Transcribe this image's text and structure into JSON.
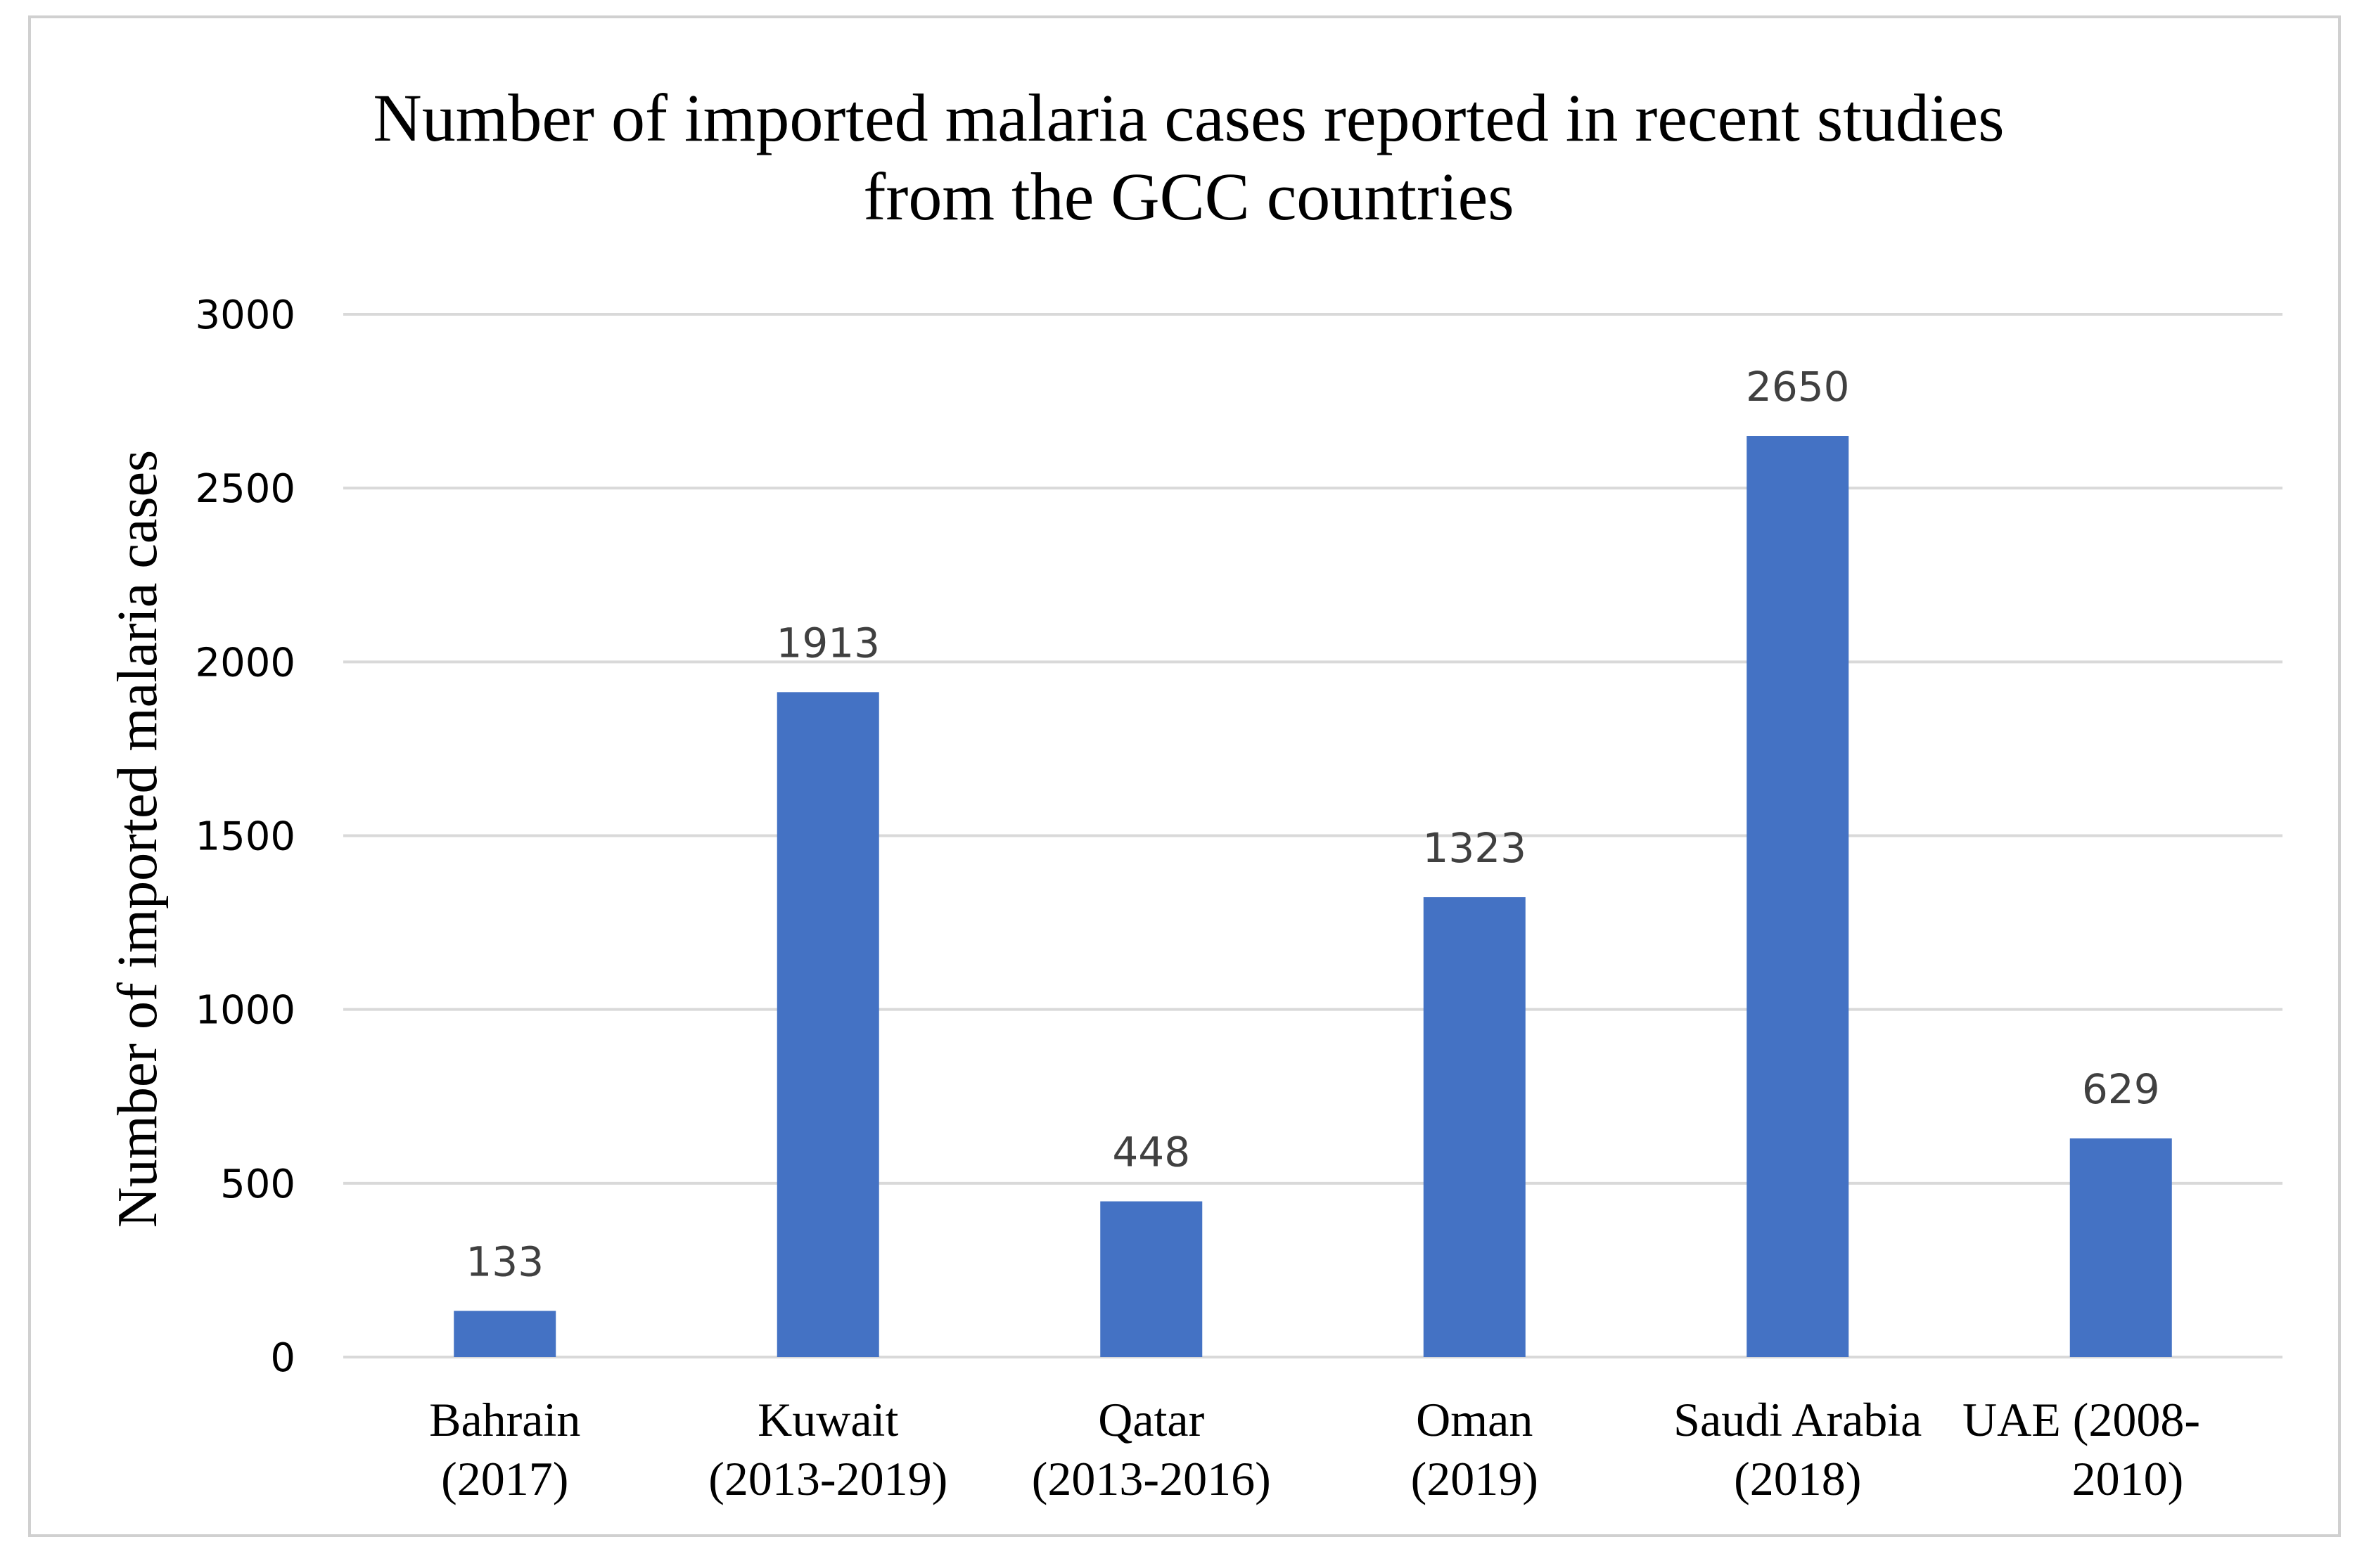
{
  "chart_data": {
    "type": "bar",
    "title": [
      "Number of imported malaria cases reported in recent studies",
      "from the GCC countries"
    ],
    "xlabel": "",
    "ylabel": "Number of imported malaria cases",
    "ylim": [
      0,
      3000
    ],
    "ytick_step": 500,
    "grid": true,
    "categories": [
      [
        "Bahrain",
        "(2017)"
      ],
      [
        "Kuwait",
        "(2013-2019)"
      ],
      [
        "Qatar",
        "(2013-2016)"
      ],
      [
        "Oman",
        "(2019)"
      ],
      [
        "Saudi Arabia",
        "(2018)"
      ],
      [
        "UAE      (2008-",
        "2010)"
      ]
    ],
    "values": [
      133,
      1913,
      448,
      1323,
      2650,
      629
    ],
    "data_labels": [
      "133",
      "1913",
      "448",
      "1323",
      "2650",
      "629"
    ],
    "colors": {
      "bar": "#4472C4",
      "grid": "#D9D9D9",
      "data_label": "#404040"
    }
  }
}
